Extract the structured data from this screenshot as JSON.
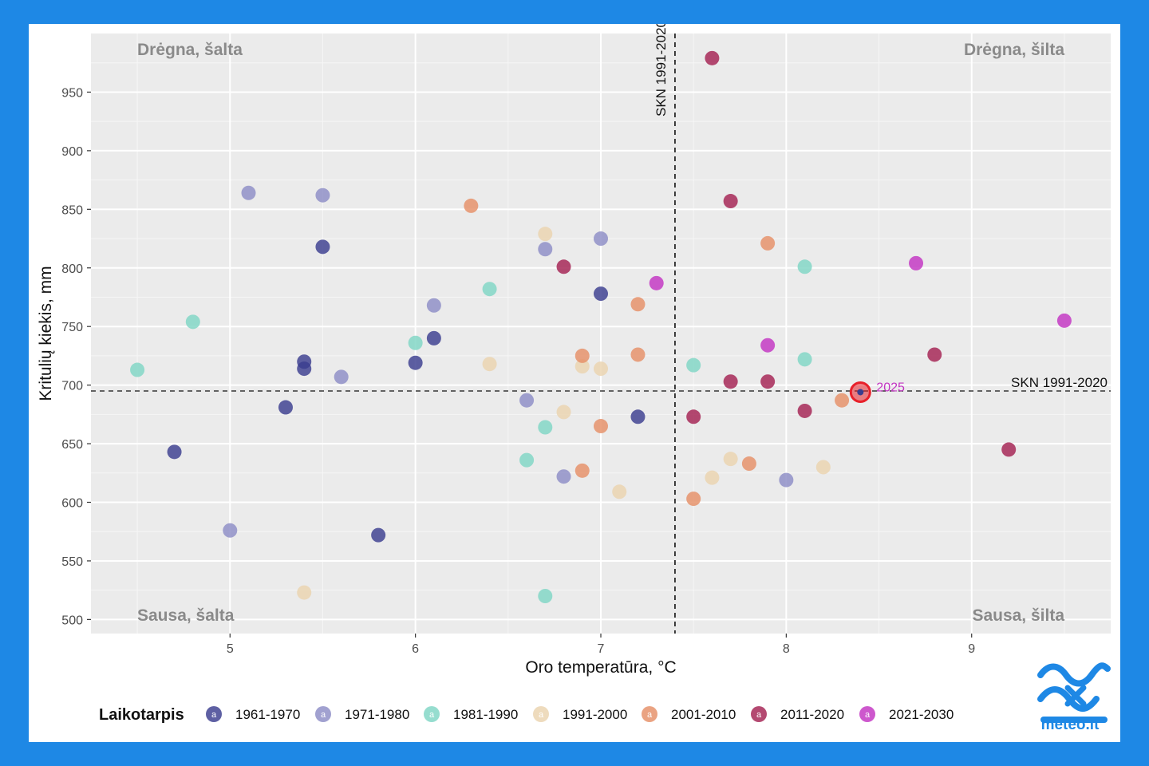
{
  "chart_data": {
    "type": "scatter",
    "xlabel": "Oro temperatūra, °C",
    "ylabel": "Kritulių kiekis, mm",
    "xlim": [
      4.25,
      9.75
    ],
    "ylim": [
      488,
      1000
    ],
    "x_ticks": [
      "5",
      "6",
      "7",
      "8",
      "9"
    ],
    "y_ticks": [
      "500",
      "550",
      "600",
      "650",
      "700",
      "750",
      "800",
      "850",
      "900",
      "950"
    ],
    "grid": true,
    "quadrant_labels": {
      "top_left": "Drėgna, šalta",
      "top_right": "Drėgna, šilta",
      "bottom_left": "Sausa, šalta",
      "bottom_right": "Sausa, šilta"
    },
    "reference_lines": {
      "vertical": {
        "x": 7.4,
        "label": "SKN 1991-2020"
      },
      "horizontal": {
        "y": 695,
        "label": "SKN 1991-2020"
      }
    },
    "highlight": {
      "x": 8.4,
      "y": 694,
      "label": "2025",
      "color": "#e8202a"
    },
    "legend": {
      "title": "Laikotarpis",
      "position": "bottom",
      "glyph": "a"
    },
    "series": [
      {
        "name": "1961-1970",
        "color": "#3a3d8f",
        "points": [
          [
            4.7,
            643
          ],
          [
            5.3,
            681
          ],
          [
            5.4,
            720
          ],
          [
            5.4,
            714
          ],
          [
            5.5,
            818
          ],
          [
            5.8,
            572
          ],
          [
            6.0,
            719
          ],
          [
            6.1,
            740
          ],
          [
            7.0,
            778
          ],
          [
            7.2,
            673
          ]
        ]
      },
      {
        "name": "1971-1980",
        "color": "#8c8cc6",
        "points": [
          [
            5.0,
            576
          ],
          [
            5.1,
            864
          ],
          [
            5.5,
            862
          ],
          [
            5.6,
            707
          ],
          [
            6.1,
            768
          ],
          [
            6.6,
            687
          ],
          [
            6.7,
            816
          ],
          [
            6.8,
            622
          ],
          [
            7.0,
            825
          ],
          [
            8.0,
            619
          ]
        ]
      },
      {
        "name": "1981-1990",
        "color": "#7fd6c4",
        "points": [
          [
            4.5,
            713
          ],
          [
            4.8,
            754
          ],
          [
            6.0,
            736
          ],
          [
            6.4,
            782
          ],
          [
            6.6,
            636
          ],
          [
            6.7,
            664
          ],
          [
            6.7,
            520
          ],
          [
            7.5,
            717
          ],
          [
            8.1,
            722
          ],
          [
            8.1,
            801
          ]
        ]
      },
      {
        "name": "1991-2000",
        "color": "#ead3ae",
        "points": [
          [
            5.4,
            523
          ],
          [
            6.4,
            718
          ],
          [
            6.7,
            829
          ],
          [
            6.8,
            677
          ],
          [
            6.9,
            716
          ],
          [
            7.0,
            714
          ],
          [
            7.1,
            609
          ],
          [
            7.6,
            621
          ],
          [
            7.7,
            637
          ],
          [
            8.2,
            630
          ]
        ]
      },
      {
        "name": "2001-2010",
        "color": "#e58f66",
        "points": [
          [
            6.3,
            853
          ],
          [
            6.9,
            725
          ],
          [
            6.9,
            627
          ],
          [
            7.0,
            665
          ],
          [
            7.2,
            769
          ],
          [
            7.2,
            726
          ],
          [
            7.5,
            603
          ],
          [
            7.8,
            633
          ],
          [
            7.9,
            821
          ],
          [
            8.3,
            687
          ]
        ]
      },
      {
        "name": "2011-2020",
        "color": "#a32152",
        "points": [
          [
            6.8,
            801
          ],
          [
            7.5,
            673
          ],
          [
            7.6,
            979
          ],
          [
            7.7,
            857
          ],
          [
            7.7,
            703
          ],
          [
            7.9,
            703
          ],
          [
            8.1,
            678
          ],
          [
            8.8,
            726
          ],
          [
            9.2,
            645
          ]
        ]
      },
      {
        "name": "2021-2030",
        "color": "#c233c2",
        "points": [
          [
            7.3,
            787
          ],
          [
            7.9,
            734
          ],
          [
            8.7,
            804
          ],
          [
            9.5,
            755
          ]
        ]
      }
    ]
  },
  "logo": {
    "text": "meteo.lt",
    "color": "#1e88e5"
  }
}
